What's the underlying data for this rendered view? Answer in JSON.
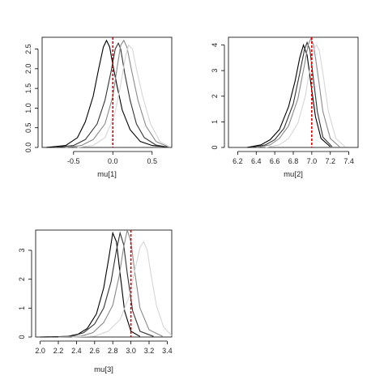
{
  "chart_data": [
    {
      "type": "line",
      "xlabel": "mu[1]",
      "ylabel": "",
      "xlim": [
        -0.9,
        0.75
      ],
      "ylim": [
        0,
        2.8
      ],
      "xticks": [
        -0.5,
        0.0,
        0.5
      ],
      "xtick_labels": [
        "-0.5",
        "0.0",
        "0.5"
      ],
      "yticks": [
        0.0,
        0.5,
        1.0,
        1.5,
        2.0,
        2.5
      ],
      "ytick_labels": [
        "0.0",
        "0.5",
        "1.0",
        "1.5",
        "2.0",
        "2.5"
      ],
      "true_value": 0.0,
      "series": [
        {
          "color": "#000000",
          "x": [
            -0.85,
            -0.6,
            -0.45,
            -0.35,
            -0.25,
            -0.18,
            -0.12,
            -0.08,
            -0.04,
            0.0,
            0.05,
            0.12,
            0.22,
            0.35,
            0.5,
            0.7
          ],
          "y": [
            0.0,
            0.05,
            0.25,
            0.65,
            1.3,
            2.0,
            2.55,
            2.72,
            2.55,
            2.1,
            1.6,
            0.95,
            0.45,
            0.15,
            0.05,
            0.01
          ]
        },
        {
          "color": "#333333",
          "x": [
            -0.75,
            -0.5,
            -0.35,
            -0.2,
            -0.1,
            -0.02,
            0.03,
            0.07,
            0.1,
            0.15,
            0.22,
            0.3,
            0.4,
            0.55,
            0.7
          ],
          "y": [
            0.0,
            0.05,
            0.2,
            0.6,
            1.2,
            1.95,
            2.5,
            2.65,
            2.5,
            1.9,
            1.2,
            0.6,
            0.25,
            0.06,
            0.01
          ]
        },
        {
          "color": "#8a8a8a",
          "x": [
            -0.6,
            -0.4,
            -0.25,
            -0.1,
            0.0,
            0.06,
            0.1,
            0.14,
            0.18,
            0.24,
            0.32,
            0.42,
            0.55,
            0.7
          ],
          "y": [
            0.0,
            0.05,
            0.2,
            0.6,
            1.3,
            2.1,
            2.6,
            2.72,
            2.55,
            1.95,
            1.2,
            0.55,
            0.15,
            0.02
          ]
        },
        {
          "color": "#d6d6d6",
          "x": [
            -0.45,
            -0.25,
            -0.1,
            0.02,
            0.1,
            0.16,
            0.2,
            0.25,
            0.3,
            0.38,
            0.48,
            0.6,
            0.72
          ],
          "y": [
            0.0,
            0.05,
            0.25,
            0.8,
            1.6,
            2.3,
            2.6,
            2.5,
            2.0,
            1.3,
            0.6,
            0.15,
            0.02
          ]
        }
      ]
    },
    {
      "type": "line",
      "xlabel": "mu[2]",
      "ylabel": "",
      "xlim": [
        6.1,
        7.5
      ],
      "ylim": [
        0,
        4.3
      ],
      "xticks": [
        6.2,
        6.4,
        6.6,
        6.8,
        7.0,
        7.2,
        7.4
      ],
      "xtick_labels": [
        "6.2",
        "6.4",
        "6.6",
        "6.8",
        "7.0",
        "7.2",
        "7.4"
      ],
      "yticks": [
        0,
        1,
        2,
        3,
        4
      ],
      "ytick_labels": [
        "0",
        "1",
        "2",
        "3",
        "4"
      ],
      "true_value": 7.0,
      "series": [
        {
          "color": "#000000",
          "x": [
            6.3,
            6.45,
            6.55,
            6.65,
            6.75,
            6.82,
            6.87,
            6.91,
            6.95,
            6.99,
            7.04,
            7.1,
            7.2
          ],
          "y": [
            0.0,
            0.1,
            0.3,
            0.7,
            1.6,
            2.6,
            3.5,
            4.0,
            3.6,
            2.5,
            1.2,
            0.35,
            0.03
          ]
        },
        {
          "color": "#333333",
          "x": [
            6.35,
            6.5,
            6.6,
            6.7,
            6.8,
            6.87,
            6.92,
            6.95,
            6.98,
            7.01,
            7.06,
            7.12,
            7.22
          ],
          "y": [
            0.0,
            0.1,
            0.3,
            0.75,
            1.7,
            2.9,
            3.8,
            4.1,
            3.8,
            2.9,
            1.4,
            0.4,
            0.03
          ]
        },
        {
          "color": "#8a8a8a",
          "x": [
            6.4,
            6.55,
            6.65,
            6.75,
            6.85,
            6.92,
            6.96,
            6.99,
            7.02,
            7.06,
            7.12,
            7.2,
            7.3
          ],
          "y": [
            0.0,
            0.1,
            0.35,
            0.85,
            1.9,
            3.2,
            4.0,
            4.25,
            4.0,
            3.0,
            1.4,
            0.35,
            0.03
          ]
        },
        {
          "color": "#d6d6d6",
          "x": [
            6.5,
            6.65,
            6.75,
            6.85,
            6.93,
            6.98,
            7.02,
            7.05,
            7.08,
            7.12,
            7.18,
            7.26,
            7.36
          ],
          "y": [
            0.0,
            0.1,
            0.35,
            0.95,
            2.0,
            3.1,
            3.8,
            4.0,
            3.8,
            2.9,
            1.4,
            0.35,
            0.03
          ]
        }
      ]
    },
    {
      "type": "line",
      "xlabel": "mu[3]",
      "ylabel": "",
      "xlim": [
        1.95,
        3.45
      ],
      "ylim": [
        0,
        3.7
      ],
      "xticks": [
        2.0,
        2.2,
        2.4,
        2.6,
        2.8,
        3.0,
        3.2,
        3.4
      ],
      "xtick_labels": [
        "2.0",
        "2.2",
        "2.4",
        "2.6",
        "2.8",
        "3.0",
        "3.2",
        "3.4"
      ],
      "yticks": [
        0,
        1,
        2,
        3
      ],
      "ytick_labels": [
        "0",
        "1",
        "2",
        "3"
      ],
      "true_value": 3.0,
      "series": [
        {
          "color": "#000000",
          "x": [
            2.0,
            2.3,
            2.42,
            2.52,
            2.62,
            2.7,
            2.76,
            2.8,
            2.84,
            2.88,
            2.93,
            3.0,
            3.1
          ],
          "y": [
            0.0,
            0.02,
            0.1,
            0.3,
            0.8,
            1.7,
            2.8,
            3.6,
            3.3,
            2.2,
            0.9,
            0.2,
            0.02
          ]
        },
        {
          "color": "#333333",
          "x": [
            2.1,
            2.35,
            2.48,
            2.6,
            2.7,
            2.78,
            2.84,
            2.88,
            2.92,
            2.96,
            3.02,
            3.1,
            3.25
          ],
          "y": [
            0.0,
            0.03,
            0.15,
            0.45,
            1.0,
            1.9,
            3.0,
            3.6,
            3.2,
            2.2,
            0.9,
            0.2,
            0.02
          ]
        },
        {
          "color": "#8a8a8a",
          "x": [
            2.2,
            2.45,
            2.58,
            2.7,
            2.8,
            2.87,
            2.92,
            2.96,
            3.0,
            3.04,
            3.1,
            3.2,
            3.35
          ],
          "y": [
            0.0,
            0.03,
            0.15,
            0.5,
            1.1,
            2.1,
            3.1,
            3.7,
            3.3,
            2.3,
            1.0,
            0.25,
            0.02
          ]
        },
        {
          "color": "#d6d6d6",
          "x": [
            2.35,
            2.6,
            2.75,
            2.88,
            2.98,
            3.05,
            3.1,
            3.14,
            3.18,
            3.22,
            3.28,
            3.36,
            3.45
          ],
          "y": [
            0.0,
            0.03,
            0.2,
            0.6,
            1.4,
            2.4,
            3.1,
            3.3,
            3.0,
            2.2,
            1.1,
            0.35,
            0.05
          ]
        }
      ]
    }
  ]
}
